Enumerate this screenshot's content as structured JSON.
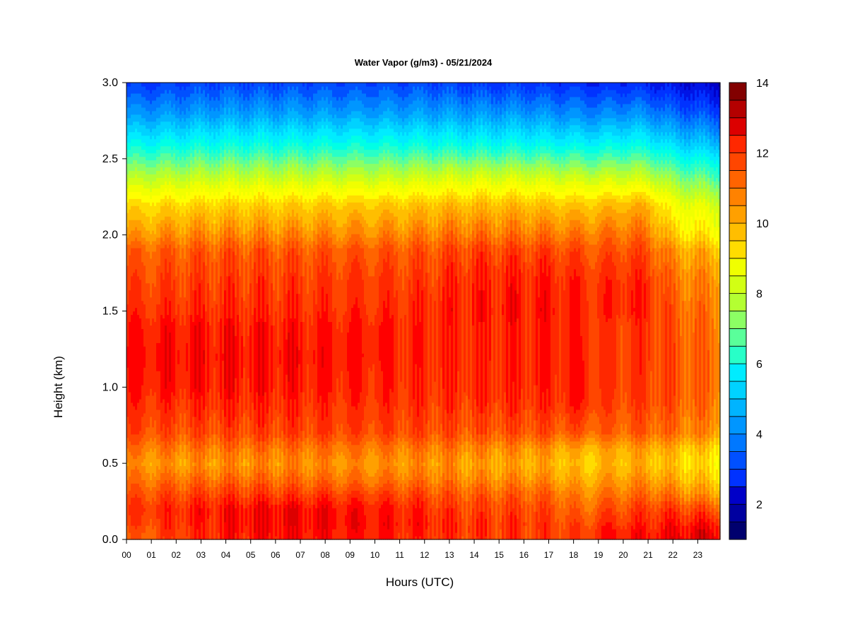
{
  "chart_data": {
    "type": "heatmap",
    "title": "Water Vapor (g/m3) - 05/21/2024",
    "xlabel": "Hours (UTC)",
    "ylabel": "Height (km)",
    "x_ticks": [
      "00",
      "01",
      "02",
      "03",
      "04",
      "05",
      "06",
      "07",
      "08",
      "09",
      "10",
      "11",
      "12",
      "13",
      "14",
      "15",
      "16",
      "17",
      "18",
      "19",
      "20",
      "21",
      "22",
      "23"
    ],
    "xlim": [
      0,
      23.9
    ],
    "y_ticks": [
      "0.0",
      "0.5",
      "1.0",
      "1.5",
      "2.0",
      "2.5",
      "3.0"
    ],
    "ylim": [
      0,
      3.0
    ],
    "colorbar": {
      "ticks": [
        "2",
        "4",
        "6",
        "8",
        "10",
        "12",
        "14"
      ],
      "range": [
        1,
        14
      ],
      "levels": 26,
      "colors": [
        "#00006e",
        "#0000a0",
        "#0000c8",
        "#0014e6",
        "#0032ff",
        "#0050ff",
        "#0078ff",
        "#0096ff",
        "#00b4ff",
        "#00d2ff",
        "#00ecff",
        "#00ffe6",
        "#28ffc8",
        "#5aff9a",
        "#8cff64",
        "#b4ff32",
        "#d2ff14",
        "#f0ff00",
        "#ffff00",
        "#ffdc00",
        "#ffbe00",
        "#ffa000",
        "#ff8200",
        "#ff6400",
        "#ff4600",
        "#ff2800",
        "#ff0000",
        "#dc0000",
        "#b40000",
        "#820000"
      ]
    },
    "time_hours": [
      0,
      2,
      4,
      6,
      8,
      10,
      12,
      13,
      14,
      16,
      17,
      18.5,
      19,
      20,
      21,
      22,
      23,
      23.9
    ],
    "height_km": [
      0.0,
      0.05,
      0.1,
      0.2,
      0.3,
      0.4,
      0.5,
      0.6,
      0.7,
      0.9,
      1.0,
      1.2,
      1.4,
      1.5,
      1.7,
      1.9,
      2.0,
      2.2,
      2.4,
      2.6,
      2.8,
      3.0
    ],
    "values": [
      [
        11.0,
        11.8,
        12.2,
        12.4,
        12.3,
        12.2,
        12.0,
        11.9,
        11.8,
        11.8,
        11.8,
        11.6,
        12.2,
        12.3,
        12.4,
        12.6,
        12.8,
        12.8
      ],
      [
        11.2,
        11.9,
        12.3,
        12.5,
        12.4,
        12.3,
        12.1,
        12.0,
        11.9,
        11.8,
        11.8,
        11.7,
        12.2,
        12.3,
        12.3,
        12.5,
        12.7,
        12.7
      ],
      [
        11.5,
        12.0,
        12.3,
        12.6,
        12.5,
        12.4,
        12.2,
        12.0,
        11.9,
        11.9,
        11.8,
        11.5,
        12.0,
        12.0,
        12.1,
        12.3,
        12.4,
        12.4
      ],
      [
        11.8,
        12.1,
        12.4,
        12.6,
        12.5,
        12.3,
        12.1,
        11.8,
        11.7,
        11.7,
        11.6,
        11.0,
        11.5,
        11.6,
        11.8,
        11.8,
        11.6,
        11.4
      ],
      [
        11.4,
        11.6,
        11.8,
        11.8,
        11.8,
        11.7,
        11.6,
        11.4,
        11.3,
        11.3,
        11.2,
        10.6,
        10.9,
        11.0,
        11.1,
        10.9,
        10.5,
        10.3
      ],
      [
        10.9,
        11.0,
        11.1,
        11.1,
        11.0,
        10.9,
        10.9,
        10.8,
        10.6,
        10.6,
        10.5,
        10.0,
        10.3,
        10.4,
        10.5,
        10.1,
        9.8,
        9.6
      ],
      [
        10.5,
        10.4,
        10.5,
        10.6,
        10.6,
        10.5,
        10.5,
        10.5,
        10.3,
        10.2,
        10.1,
        9.6,
        9.9,
        10.0,
        10.0,
        9.7,
        9.4,
        9.2
      ],
      [
        10.9,
        10.9,
        11.0,
        11.0,
        11.0,
        10.9,
        10.9,
        10.9,
        10.7,
        10.6,
        10.5,
        10.0,
        10.2,
        10.3,
        10.3,
        10.0,
        9.7,
        9.5
      ],
      [
        11.6,
        11.5,
        11.6,
        11.7,
        11.7,
        11.6,
        11.6,
        11.5,
        11.4,
        11.5,
        11.4,
        11.3,
        11.2,
        11.2,
        11.3,
        11.0,
        10.7,
        10.5
      ],
      [
        12.0,
        12.0,
        12.1,
        12.1,
        12.0,
        12.0,
        11.9,
        11.9,
        11.9,
        12.0,
        12.0,
        12.2,
        11.7,
        11.7,
        11.7,
        11.4,
        11.1,
        11.0
      ],
      [
        12.2,
        12.3,
        12.3,
        12.3,
        12.2,
        12.1,
        12.0,
        12.0,
        12.0,
        12.1,
        12.1,
        12.3,
        11.8,
        11.8,
        11.8,
        11.5,
        11.2,
        11.1
      ],
      [
        12.3,
        12.4,
        12.4,
        12.4,
        12.3,
        12.2,
        12.1,
        12.1,
        12.1,
        12.2,
        12.2,
        12.2,
        11.8,
        11.8,
        11.9,
        11.5,
        11.2,
        11.1
      ],
      [
        12.2,
        12.3,
        12.3,
        12.3,
        12.2,
        12.2,
        12.1,
        12.1,
        12.1,
        12.2,
        12.2,
        12.1,
        11.8,
        11.8,
        11.9,
        11.4,
        11.1,
        11.0
      ],
      [
        11.9,
        12.0,
        12.0,
        12.0,
        12.0,
        12.0,
        12.0,
        12.2,
        12.2,
        12.3,
        12.3,
        12.1,
        12.0,
        12.2,
        12.1,
        11.3,
        11.0,
        10.9
      ],
      [
        11.6,
        11.7,
        11.8,
        11.8,
        11.8,
        11.8,
        11.8,
        12.0,
        12.1,
        12.2,
        12.2,
        12.0,
        11.9,
        12.1,
        12.0,
        11.0,
        10.7,
        10.6
      ],
      [
        11.2,
        11.3,
        11.4,
        11.4,
        11.4,
        11.4,
        11.4,
        11.6,
        11.7,
        11.7,
        11.7,
        11.5,
        11.4,
        11.6,
        11.5,
        10.4,
        10.1,
        10.0
      ],
      [
        10.4,
        10.6,
        10.7,
        10.7,
        10.7,
        10.7,
        10.8,
        11.0,
        11.0,
        11.0,
        11.0,
        10.9,
        10.9,
        11.1,
        11.0,
        9.6,
        9.3,
        9.1
      ],
      [
        9.4,
        9.5,
        9.6,
        9.6,
        9.7,
        9.7,
        9.8,
        9.9,
        9.9,
        9.9,
        9.8,
        9.7,
        9.8,
        10.0,
        10.0,
        8.7,
        8.4,
        8.2
      ],
      [
        7.6,
        7.7,
        7.8,
        7.8,
        7.8,
        7.8,
        7.9,
        8.0,
        8.0,
        8.0,
        7.9,
        7.8,
        7.8,
        7.9,
        7.8,
        7.1,
        6.8,
        6.6
      ],
      [
        5.8,
        5.9,
        6.0,
        6.0,
        6.0,
        6.0,
        6.0,
        6.0,
        5.9,
        5.9,
        5.8,
        5.7,
        5.7,
        5.9,
        5.8,
        5.2,
        5.0,
        4.8
      ],
      [
        4.2,
        4.3,
        4.4,
        4.4,
        4.4,
        4.4,
        4.4,
        4.4,
        4.3,
        4.3,
        4.2,
        4.0,
        4.0,
        4.2,
        4.1,
        3.6,
        3.4,
        3.2
      ],
      [
        3.0,
        3.1,
        3.2,
        3.2,
        3.2,
        3.2,
        3.2,
        3.1,
        3.0,
        3.0,
        2.9,
        2.8,
        2.7,
        2.8,
        2.7,
        2.4,
        2.2,
        2.1
      ]
    ]
  }
}
